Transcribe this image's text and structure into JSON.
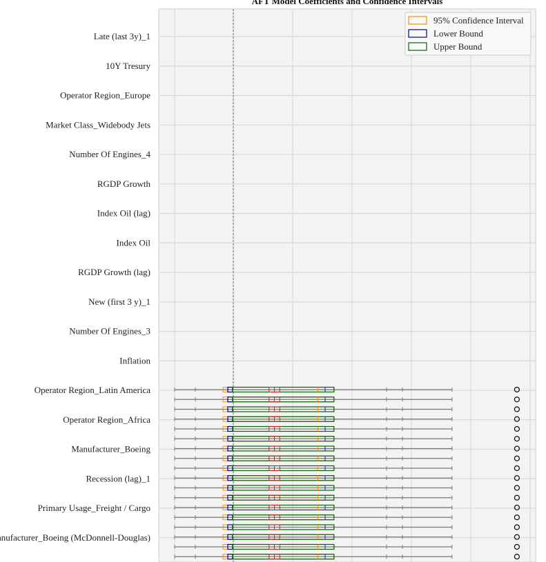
{
  "chart_data": {
    "type": "box",
    "title": "AFT Model Coefficients and Confidence Intervals",
    "xlabel": "",
    "ylabel": "",
    "grid": true,
    "legend_position": "top-right",
    "legend": [
      {
        "name": "95% Confidence Interval",
        "color": "#ff8c00"
      },
      {
        "name": "Lower Bound",
        "color": "#00008b"
      },
      {
        "name": "Upper Bound",
        "color": "#006400"
      }
    ],
    "categories": [
      "Late (last 3y)_1",
      "10Y Tresury",
      "Operator Region_Europe",
      "Market Class_Widebody Jets",
      "Number Of Engines_4",
      "RGDP Growth",
      "Index Oil (lag)",
      "Index Oil",
      "RGDP Growth (lag)",
      "New (first 3 y)_1",
      "Number Of Engines_3",
      "Inflation",
      "Operator Region_Latin America",
      "Operator Region_Africa",
      "Manufacturer_Boeing",
      "Recession (lag)_1",
      "Primary Usage_Freight / Cargo",
      "Manufacturer_Boeing (McDonnell-Douglas)"
    ],
    "reference_line": "dashed vertical at zero",
    "box_stats": {
      "whisker_low": 0.0,
      "ci_box": [
        0.82,
        2.7
      ],
      "lower_box": [
        0.9,
        0.98
      ],
      "inner_box": [
        1.6,
        1.78
      ],
      "upper_box": [
        2.45,
        2.7
      ],
      "upper_median": 2.55,
      "whisker_high": 4.7,
      "outlier": 5.8
    }
  }
}
